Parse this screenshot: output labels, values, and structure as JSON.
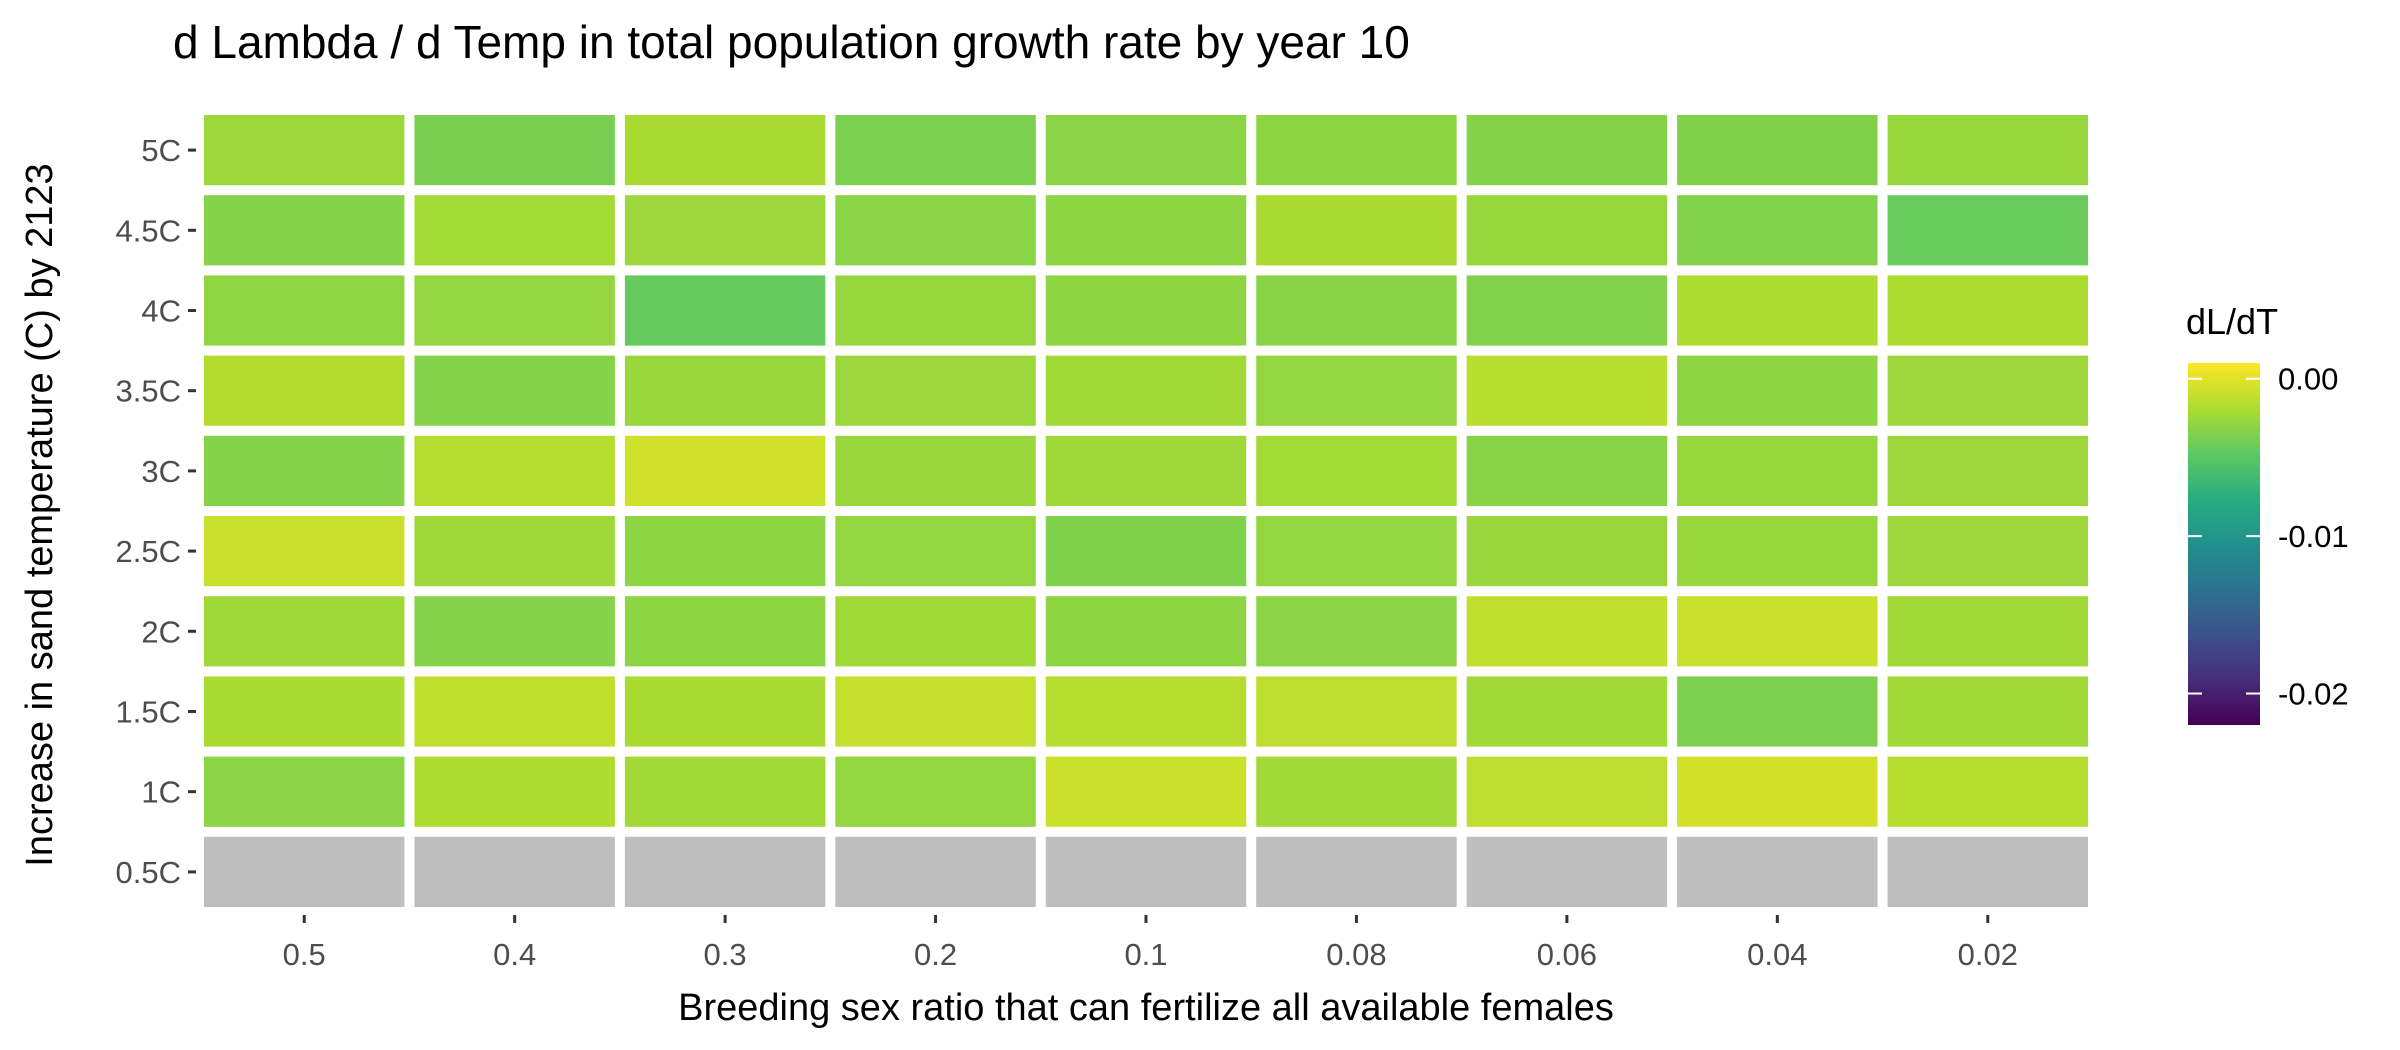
{
  "chart_data": {
    "type": "heatmap",
    "title": "d Lambda / d Temp in total population growth rate by year 10",
    "xlabel": "Breeding sex ratio that can fertilize all available females",
    "ylabel": "Increase in sand temperature (C) by 2123",
    "x_categories": [
      "0.5",
      "0.4",
      "0.3",
      "0.2",
      "0.1",
      "0.08",
      "0.06",
      "0.04",
      "0.02"
    ],
    "y_categories": [
      "5C",
      "4.5C",
      "4C",
      "3.5C",
      "3C",
      "2.5C",
      "2C",
      "1.5C",
      "1C",
      "0.5C"
    ],
    "values": [
      [
        -0.0025,
        -0.0038,
        -0.002,
        -0.0037,
        -0.0031,
        -0.003,
        -0.0033,
        -0.0035,
        -0.0027
      ],
      [
        -0.0033,
        -0.0022,
        -0.0025,
        -0.0031,
        -0.003,
        -0.002,
        -0.0027,
        -0.0034,
        -0.0044
      ],
      [
        -0.0029,
        -0.0028,
        -0.0045,
        -0.0027,
        -0.003,
        -0.0032,
        -0.0034,
        -0.0018,
        -0.0019
      ],
      [
        -0.0017,
        -0.0033,
        -0.0026,
        -0.0025,
        -0.0023,
        -0.0028,
        -0.0015,
        -0.003,
        -0.0025
      ],
      [
        -0.0033,
        -0.0016,
        -0.0006,
        -0.0026,
        -0.0024,
        -0.0022,
        -0.0032,
        -0.0027,
        -0.0025
      ],
      [
        -0.0008,
        -0.0024,
        -0.003,
        -0.0028,
        -0.0035,
        -0.0028,
        -0.0026,
        -0.0027,
        -0.0025
      ],
      [
        -0.0024,
        -0.0033,
        -0.003,
        -0.0023,
        -0.003,
        -0.0031,
        -0.0012,
        -0.0008,
        -0.0023
      ],
      [
        -0.002,
        -0.0012,
        -0.002,
        -0.001,
        -0.0015,
        -0.0013,
        -0.0023,
        -0.0036,
        -0.0023
      ],
      [
        -0.0031,
        -0.0018,
        -0.0023,
        -0.0028,
        -0.0008,
        -0.0023,
        -0.0013,
        -0.0005,
        -0.0015
      ],
      [
        null,
        null,
        null,
        null,
        null,
        null,
        null,
        null,
        null
      ]
    ],
    "legend": {
      "title": "dL/dT",
      "min": -0.022,
      "max": 0.001,
      "tick_values": [
        0.0,
        -0.01,
        -0.02
      ],
      "tick_labels": [
        "0.00",
        "-0.01",
        "-0.02"
      ],
      "placement": "right"
    },
    "colors": {
      "na_fill": "#bebebe",
      "tile_border": "#ffffff",
      "scale": [
        "#440154",
        "#472d7b",
        "#3b528b",
        "#2c728e",
        "#21918c",
        "#28ae80",
        "#5ec962",
        "#addc30",
        "#fde725"
      ]
    }
  }
}
